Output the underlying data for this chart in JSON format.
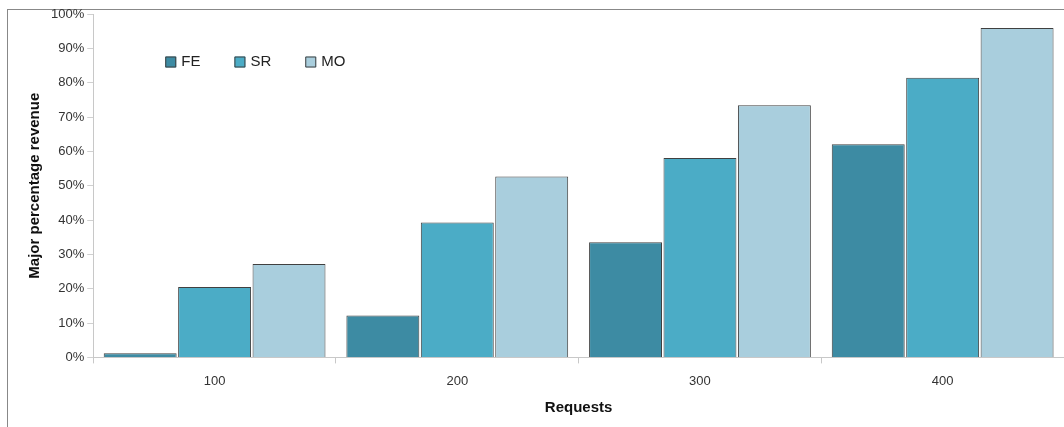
{
  "chart_data": {
    "type": "bar",
    "xlabel": "Requests",
    "ylabel": "Major percentage revenue",
    "categories": [
      "100",
      "200",
      "300",
      "400"
    ],
    "series": [
      {
        "name": "FE",
        "color": "#3d8ba3",
        "values": [
          1.2,
          12.2,
          33.5,
          62.1
        ]
      },
      {
        "name": "SR",
        "color": "#4bacc6",
        "values": [
          20.5,
          39.3,
          58.1,
          81.4
        ]
      },
      {
        "name": "MO",
        "color": "#a9cedd",
        "values": [
          27.2,
          52.7,
          73.4,
          95.9
        ]
      }
    ],
    "ylim": [
      0,
      100
    ],
    "yticks": [
      {
        "value": 0,
        "label": "0%"
      },
      {
        "value": 10,
        "label": "10%"
      },
      {
        "value": 20,
        "label": "20%"
      },
      {
        "value": 30,
        "label": "30%"
      },
      {
        "value": 40,
        "label": "40%"
      },
      {
        "value": 50,
        "label": "50%"
      },
      {
        "value": 60,
        "label": "60%"
      },
      {
        "value": 70,
        "label": "70%"
      },
      {
        "value": 80,
        "label": "80%"
      },
      {
        "value": 90,
        "label": "90%"
      },
      {
        "value": 100,
        "label": "100%"
      }
    ],
    "grid": false,
    "legend": "top left"
  }
}
